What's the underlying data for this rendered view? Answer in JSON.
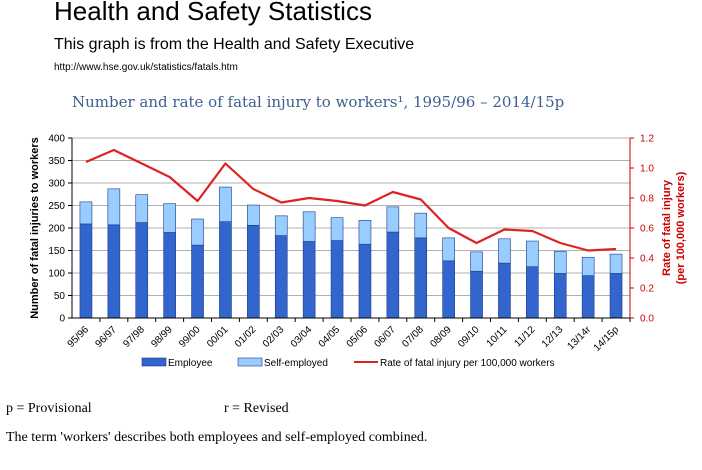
{
  "page": {
    "title": "Health and Safety Statistics",
    "subtitle": "This graph is from the Health and Safety Executive",
    "url": "http://www.hse.gov.uk/statistics/fatals.htm"
  },
  "chart_data": {
    "type": "bar",
    "stacked": true,
    "title": "Number and rate of fatal injury to workers¹, 1995/96 – 2014/15p",
    "ylabel": "Number of fatal injuries to workers",
    "y2label_line1": "Rate of fatal injury",
    "y2label_line2": "(per 100,000 workers)",
    "ylim": [
      0,
      400
    ],
    "y2lim": [
      0,
      1.2
    ],
    "yticks": [
      "0",
      "50",
      "100",
      "150",
      "200",
      "250",
      "300",
      "350",
      "400"
    ],
    "y2ticks": [
      "0.0",
      "0.2",
      "0.4",
      "0.6",
      "0.8",
      "1.0",
      "1.2"
    ],
    "grid": true,
    "categories": [
      "95/96",
      "96/97",
      "97/98",
      "98/99",
      "99/00",
      "00/01",
      "01/02",
      "02/03",
      "03/04",
      "04/05",
      "05/06",
      "06/07",
      "07/08",
      "08/09",
      "09/10",
      "10/11",
      "11/12",
      "12/13",
      "13/14r",
      "14/15p"
    ],
    "series": [
      {
        "name": "Employee",
        "color": "#3366cc",
        "values": [
          209,
          207,
          212,
          190,
          162,
          214,
          206,
          183,
          170,
          172,
          164,
          191,
          178,
          127,
          104,
          122,
          114,
          99,
          94,
          99
        ]
      },
      {
        "name": "Self-employed",
        "color": "#99ccff",
        "values": [
          49,
          80,
          62,
          64,
          58,
          77,
          45,
          44,
          66,
          51,
          53,
          56,
          55,
          51,
          43,
          54,
          57,
          49,
          41,
          43
        ]
      },
      {
        "name": "Rate of fatal injury per 100,000 workers",
        "type": "line",
        "axis": "right",
        "color": "#dd2222",
        "values": [
          1.04,
          1.12,
          1.03,
          0.94,
          0.78,
          1.03,
          0.86,
          0.77,
          0.8,
          0.78,
          0.75,
          0.84,
          0.79,
          0.6,
          0.5,
          0.59,
          0.58,
          0.5,
          0.45,
          0.46
        ]
      }
    ],
    "legend_position": "bottom"
  },
  "footer": {
    "provisional": "p = Provisional",
    "revised": "r = Revised",
    "note": "The term 'workers' describes both employees and self-employed combined."
  }
}
